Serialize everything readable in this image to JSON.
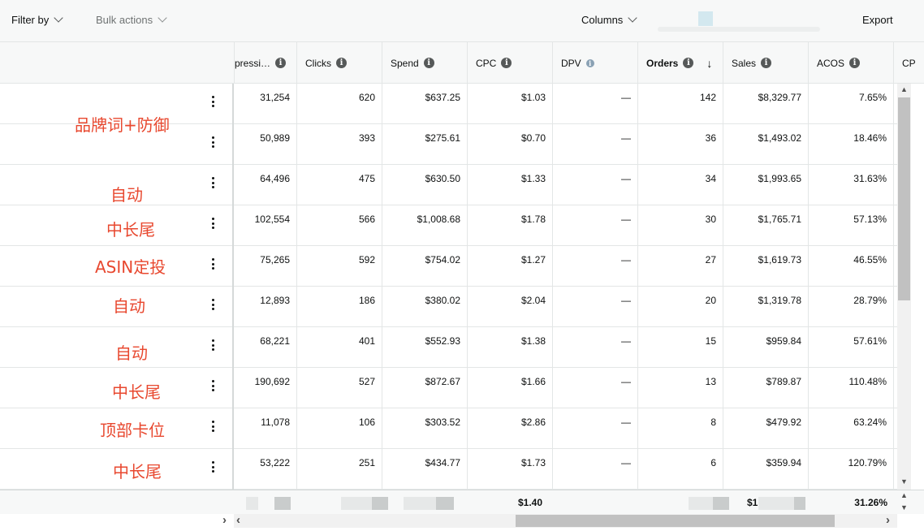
{
  "toolbar": {
    "filter_label": "Filter by",
    "bulk_label": "Bulk actions",
    "columns_label": "Columns",
    "export_label": "Export"
  },
  "columns": [
    {
      "key": "impressions",
      "label": "pressi…"
    },
    {
      "key": "clicks",
      "label": "Clicks"
    },
    {
      "key": "spend",
      "label": "Spend"
    },
    {
      "key": "cpc",
      "label": "CPC"
    },
    {
      "key": "dpv",
      "label": "DPV"
    },
    {
      "key": "orders",
      "label": "Orders"
    },
    {
      "key": "sales",
      "label": "Sales"
    },
    {
      "key": "acos",
      "label": "ACOS"
    },
    {
      "key": "cpx",
      "label": "CP"
    }
  ],
  "rows": [
    {
      "impressions": "31,254",
      "clicks": "620",
      "spend": "$637.25",
      "cpc": "$1.03",
      "dpv": "—",
      "orders": "142",
      "sales": "$8,329.77",
      "acos": "7.65%"
    },
    {
      "impressions": "50,989",
      "clicks": "393",
      "spend": "$275.61",
      "cpc": "$0.70",
      "dpv": "—",
      "orders": "36",
      "sales": "$1,493.02",
      "acos": "18.46%"
    },
    {
      "impressions": "64,496",
      "clicks": "475",
      "spend": "$630.50",
      "cpc": "$1.33",
      "dpv": "—",
      "orders": "34",
      "sales": "$1,993.65",
      "acos": "31.63%"
    },
    {
      "impressions": "102,554",
      "clicks": "566",
      "spend": "$1,008.68",
      "cpc": "$1.78",
      "dpv": "—",
      "orders": "30",
      "sales": "$1,765.71",
      "acos": "57.13%"
    },
    {
      "impressions": "75,265",
      "clicks": "592",
      "spend": "$754.02",
      "cpc": "$1.27",
      "dpv": "—",
      "orders": "27",
      "sales": "$1,619.73",
      "acos": "46.55%"
    },
    {
      "impressions": "12,893",
      "clicks": "186",
      "spend": "$380.02",
      "cpc": "$2.04",
      "dpv": "—",
      "orders": "20",
      "sales": "$1,319.78",
      "acos": "28.79%"
    },
    {
      "impressions": "68,221",
      "clicks": "401",
      "spend": "$552.93",
      "cpc": "$1.38",
      "dpv": "—",
      "orders": "15",
      "sales": "$959.84",
      "acos": "57.61%"
    },
    {
      "impressions": "190,692",
      "clicks": "527",
      "spend": "$872.67",
      "cpc": "$1.66",
      "dpv": "—",
      "orders": "13",
      "sales": "$789.87",
      "acos": "110.48%"
    },
    {
      "impressions": "11,078",
      "clicks": "106",
      "spend": "$303.52",
      "cpc": "$2.86",
      "dpv": "—",
      "orders": "8",
      "sales": "$479.92",
      "acos": "63.24%"
    },
    {
      "impressions": "53,222",
      "clicks": "251",
      "spend": "$434.77",
      "cpc": "$1.73",
      "dpv": "—",
      "orders": "6",
      "sales": "$359.94",
      "acos": "120.79%"
    }
  ],
  "annotations": [
    "品牌词+防御",
    "自动",
    "中长尾",
    "ASIN定投",
    "自动",
    "自动",
    "中长尾",
    "顶部卡位",
    "中长尾"
  ],
  "totals": {
    "cpc": "$1.40",
    "sales": "$1",
    "acos": "31.26%"
  },
  "icons": {
    "info": "i",
    "sort_desc": "↓",
    "scroll_up": "▲",
    "scroll_down": "▼",
    "scroll_left": "‹",
    "scroll_right": "›"
  },
  "colors": {
    "annotation_red": "#e8482f",
    "toolbar_bg": "#f7f8f8",
    "border": "#e3e6e6"
  }
}
